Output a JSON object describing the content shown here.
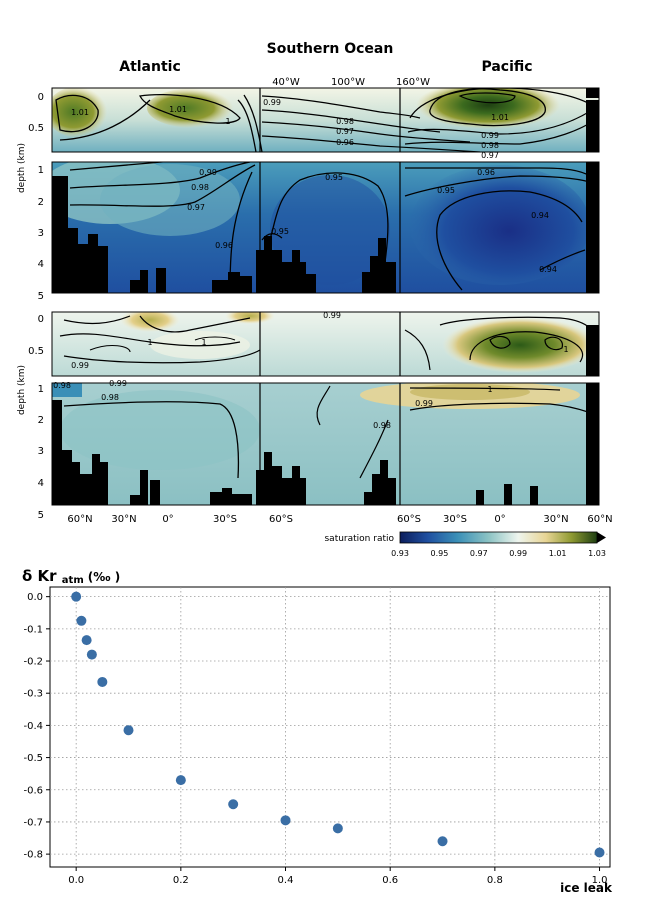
{
  "chart_data": [
    {
      "type": "heatmap",
      "title": "Southern Ocean",
      "region_labels": [
        "Atlantic",
        "Pacific"
      ],
      "top_axis_ticks": [
        "40°W",
        "100°W",
        "160°W"
      ],
      "bottom_axis_ticks": [
        "60°N",
        "30°N",
        "0°",
        "30°S",
        "60°S",
        "60°S",
        "30°S",
        "0°",
        "30°N",
        "60°N"
      ],
      "ylabel": "depth (km)",
      "upper_yticks": [
        "0",
        "0.5"
      ],
      "lower_yticks": [
        "1",
        "2",
        "3",
        "4",
        "5"
      ],
      "colorbar": {
        "label": "saturation ratio",
        "ticks": [
          "0.93",
          "0.95",
          "0.97",
          "0.99",
          "1.01",
          "1.03"
        ],
        "range": [
          0.93,
          1.03
        ],
        "colors": [
          "#0c1e5c",
          "#1f4fa0",
          "#3a8fb7",
          "#8cc3c4",
          "#eef5ee",
          "#e8d595",
          "#8f9a32",
          "#1e3f12"
        ]
      },
      "panels": [
        {
          "name": "top",
          "contour_labels": [
            "1.01",
            "1.01",
            "1",
            "0.99",
            "0.98",
            "0.97",
            "0.96",
            "1.01",
            "0.99",
            "0.98",
            "0.97",
            "0.96",
            "0.99",
            "0.98",
            "0.97",
            "0.96",
            "0.95",
            "0.95",
            "0.95",
            "0.94",
            "0.94"
          ]
        },
        {
          "name": "bottom",
          "contour_labels": [
            "0.99",
            "1",
            "1",
            "0.99",
            "1",
            "0.98",
            "0.99",
            "0.98",
            "0.98",
            "1",
            "0.99"
          ]
        }
      ]
    },
    {
      "type": "scatter",
      "ylabel_main": "δ Kr",
      "ylabel_sub": "atm",
      "ylabel_unit": "(‰ )",
      "xlabel": "ice leak",
      "xlim": [
        -0.05,
        1.02
      ],
      "ylim": [
        -0.84,
        0.03
      ],
      "xticks": [
        "0.0",
        "0.2",
        "0.4",
        "0.6",
        "0.8",
        "1.0"
      ],
      "yticks": [
        "0.0",
        "-0.1",
        "-0.2",
        "-0.3",
        "-0.4",
        "-0.5",
        "-0.6",
        "-0.7",
        "-0.8"
      ],
      "grid": true,
      "marker_color": "#3a6ea5",
      "x": [
        0.0,
        0.01,
        0.02,
        0.03,
        0.05,
        0.1,
        0.2,
        0.3,
        0.4,
        0.5,
        0.7,
        1.0
      ],
      "y": [
        0.0,
        -0.075,
        -0.135,
        -0.18,
        -0.265,
        -0.415,
        -0.57,
        -0.645,
        -0.695,
        -0.72,
        -0.76,
        -0.795
      ]
    }
  ]
}
